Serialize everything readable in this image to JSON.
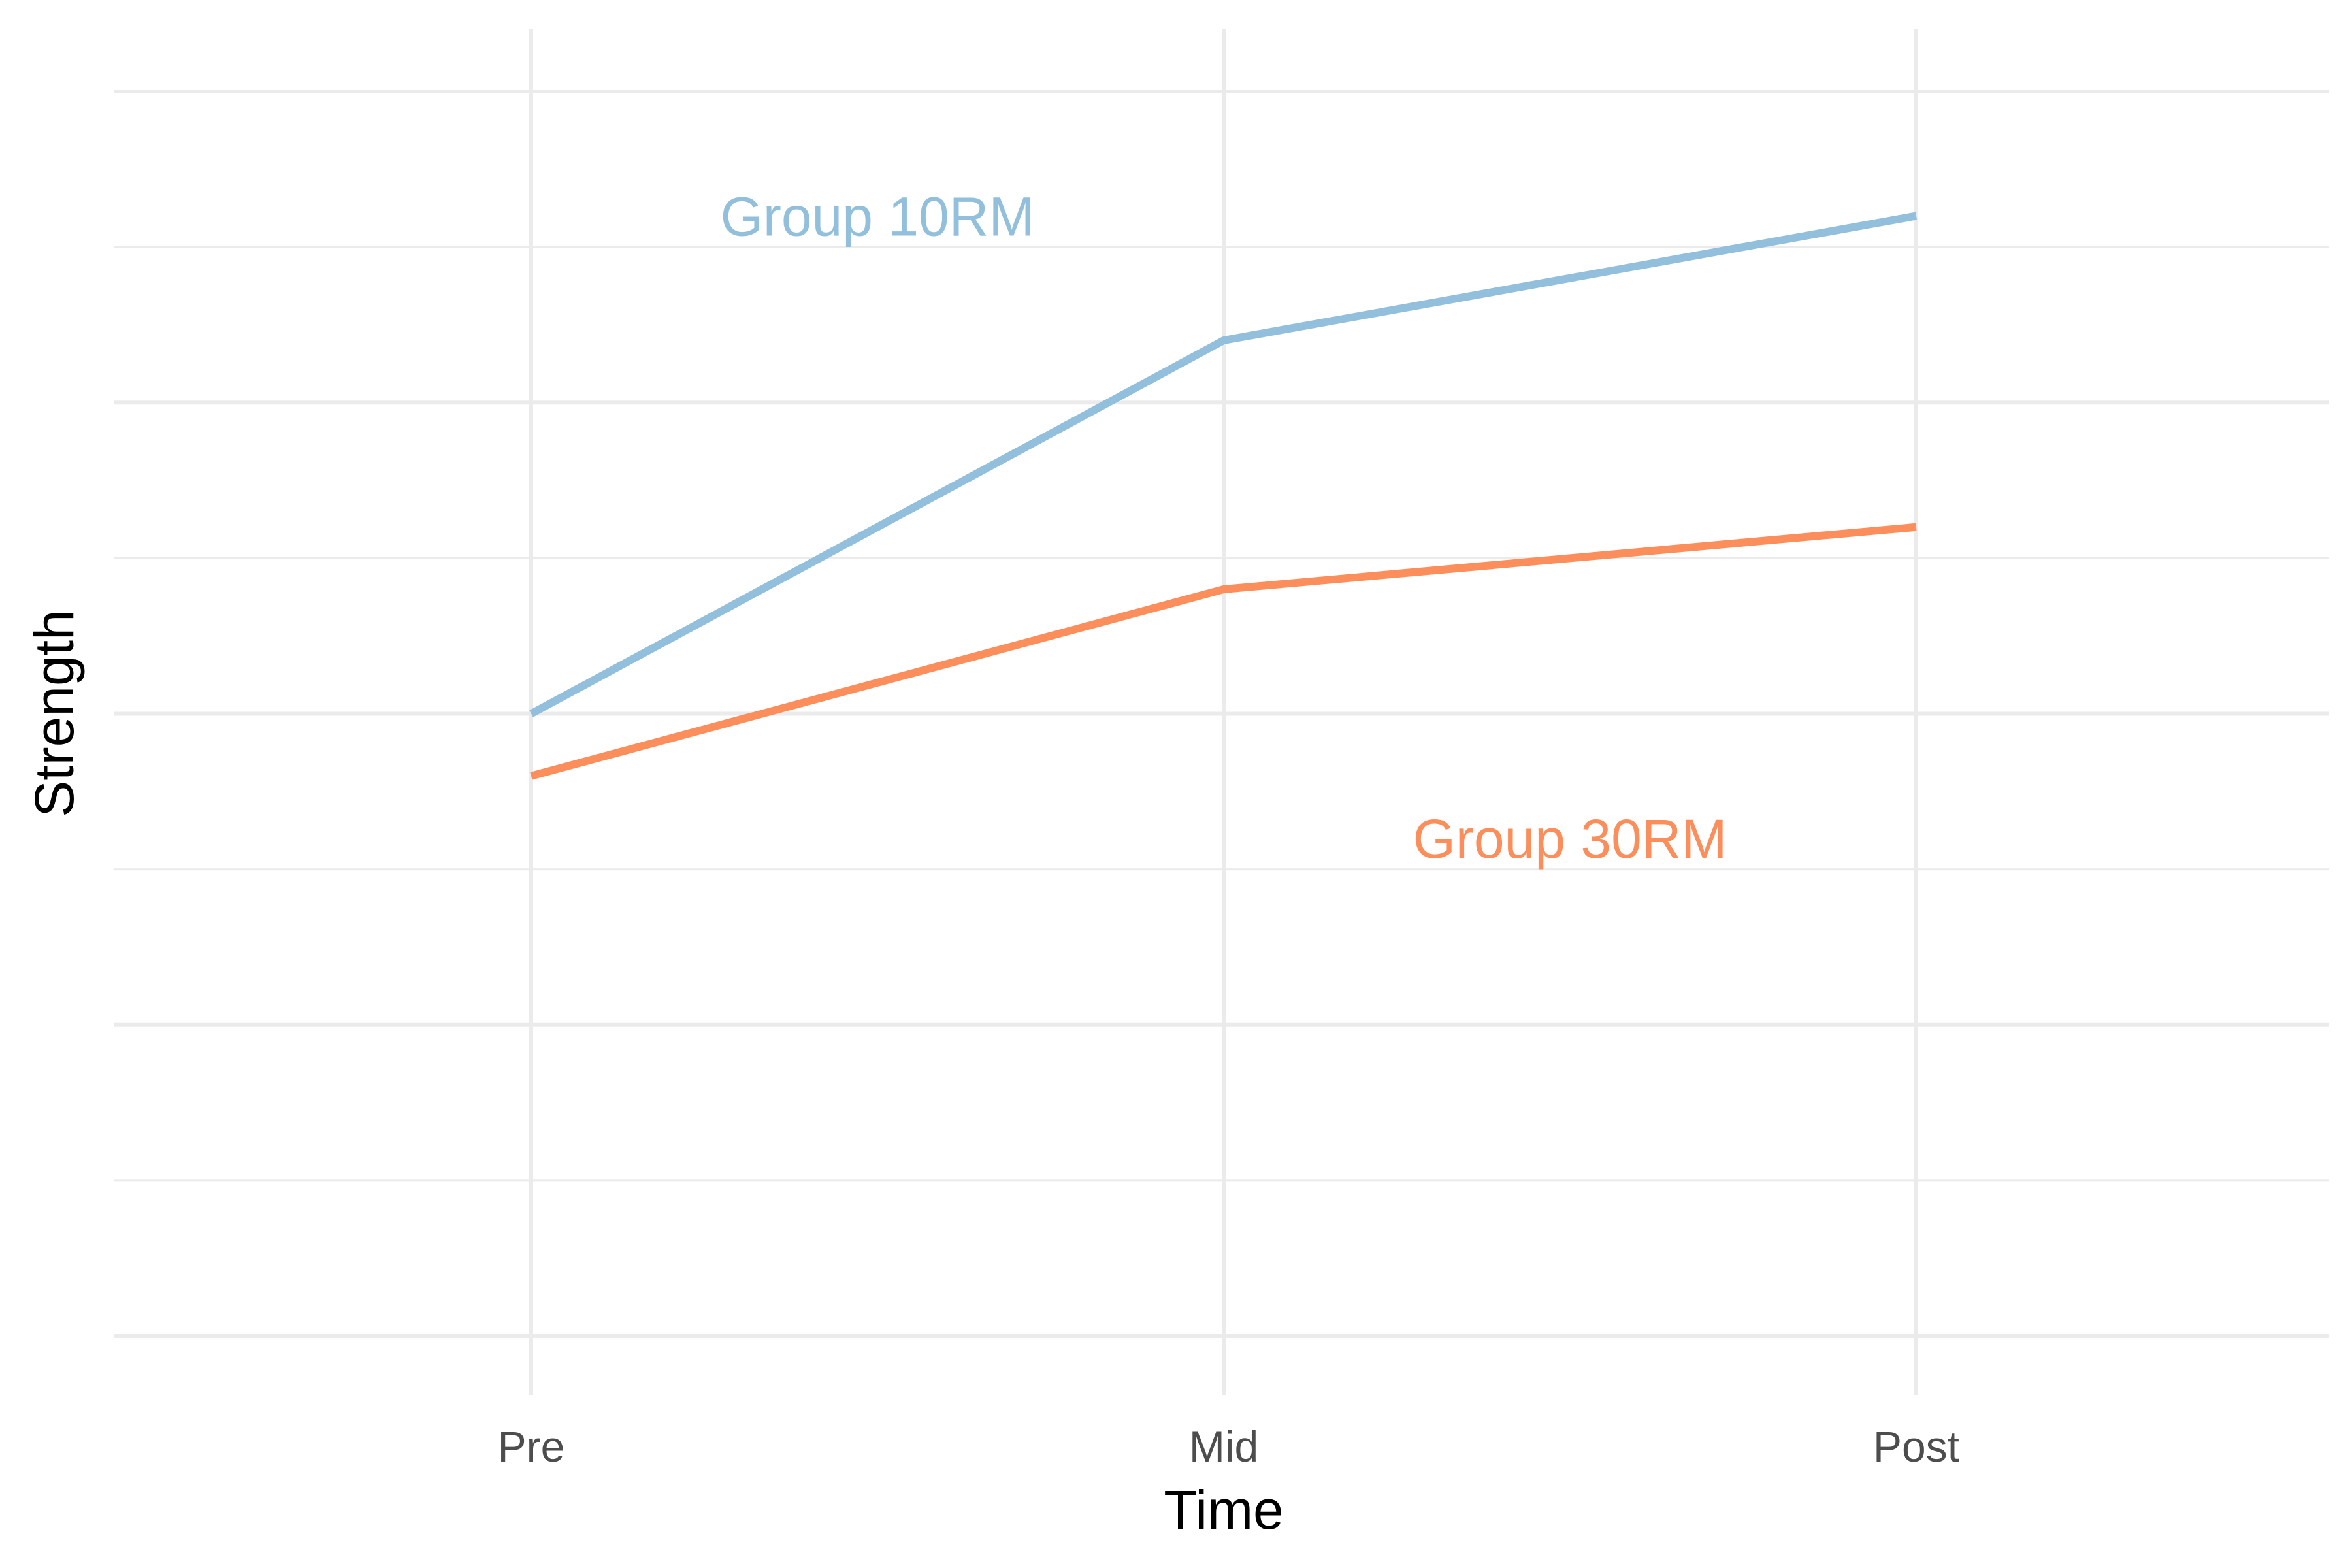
{
  "chart_data": {
    "type": "line",
    "title": "",
    "xlabel": "Time",
    "ylabel": "Strength",
    "categories": [
      "Pre",
      "Mid",
      "Post"
    ],
    "ylim": [
      0,
      8
    ],
    "y_ticks_labeled": false,
    "grid": true,
    "legend": "direct-labels",
    "series": [
      {
        "name": "Group 10RM",
        "values": [
          4.0,
          6.4,
          7.2
        ],
        "color": "#92bfdb"
      },
      {
        "name": "Group 30RM",
        "values": [
          3.6,
          4.8,
          5.2
        ],
        "color": "#fb8e5a"
      }
    ],
    "annotations": [
      {
        "text": "Group 10RM",
        "series": 0,
        "x": 0.5,
        "y": 7.2
      },
      {
        "text": "Group 30RM",
        "series": 1,
        "x": 1.5,
        "y": 3.2
      }
    ]
  }
}
